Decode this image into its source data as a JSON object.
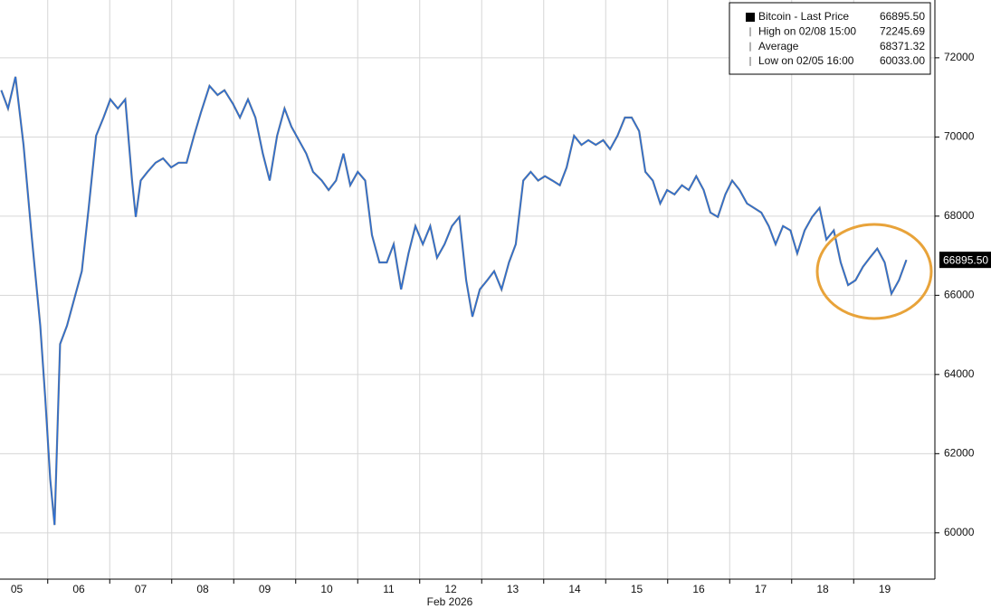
{
  "chart_data": {
    "type": "line",
    "x_label": "Feb 2026",
    "series": [
      {
        "name": "Bitcoin - Last Price",
        "color": "#2b6fd6",
        "x": [
          5.25,
          5.36,
          5.48,
          5.61,
          5.74,
          5.88,
          5.96,
          6.04,
          6.11,
          6.2,
          6.31,
          6.43,
          6.55,
          6.66,
          6.78,
          6.9,
          7.01,
          7.13,
          7.25,
          7.36,
          7.42,
          7.5,
          7.61,
          7.74,
          7.86,
          7.99,
          8.11,
          8.24,
          8.36,
          8.47,
          8.61,
          8.74,
          8.85,
          8.99,
          9.1,
          9.23,
          9.35,
          9.47,
          9.58,
          9.7,
          9.82,
          9.93,
          10.05,
          10.17,
          10.28,
          10.42,
          10.53,
          10.65,
          10.77,
          10.88,
          11.0,
          11.12,
          11.23,
          11.35,
          11.47,
          11.58,
          11.7,
          11.82,
          11.93,
          12.05,
          12.17,
          12.28,
          12.4,
          12.52,
          12.64,
          12.75,
          12.85,
          12.97,
          13.09,
          13.2,
          13.32,
          13.44,
          13.55,
          13.67,
          13.79,
          13.91,
          14.02,
          14.14,
          14.26,
          14.37,
          14.49,
          14.61,
          14.72,
          14.84,
          14.96,
          15.07,
          15.19,
          15.31,
          15.42,
          15.54,
          15.64,
          15.76,
          15.88,
          15.99,
          16.11,
          16.23,
          16.34,
          16.46,
          16.58,
          16.69,
          16.81,
          16.93,
          17.04,
          17.16,
          17.28,
          17.39,
          17.51,
          17.63,
          17.74,
          17.86,
          17.98,
          18.09,
          18.21,
          18.33,
          18.45,
          18.56,
          18.68,
          18.79,
          18.91,
          19.03,
          19.15,
          19.26,
          19.38,
          19.5,
          19.61,
          19.73,
          19.85
        ],
        "values": [
          71180,
          70720,
          71520,
          69800,
          67520,
          65230,
          63400,
          61350,
          60200,
          64770,
          65230,
          65920,
          66610,
          68210,
          70030,
          70490,
          70950,
          70720,
          70950,
          68900,
          67980,
          68900,
          69120,
          69350,
          69460,
          69230,
          69350,
          69350,
          70030,
          70610,
          71290,
          71060,
          71180,
          70830,
          70490,
          70950,
          70490,
          69580,
          68900,
          70030,
          70720,
          70260,
          69920,
          69580,
          69120,
          68900,
          68660,
          68900,
          69580,
          68780,
          69120,
          68900,
          67520,
          66830,
          66830,
          67290,
          66150,
          67060,
          67750,
          67290,
          67750,
          66950,
          67290,
          67750,
          67980,
          66380,
          65460,
          66150,
          66380,
          66610,
          66150,
          66830,
          67290,
          68900,
          69120,
          68900,
          69010,
          68900,
          68780,
          69230,
          70030,
          69800,
          69920,
          69800,
          69920,
          69690,
          70030,
          70490,
          70490,
          70150,
          69120,
          68900,
          68320,
          68660,
          68550,
          68780,
          68660,
          69010,
          68660,
          68090,
          67980,
          68550,
          68900,
          68660,
          68320,
          68210,
          68090,
          67750,
          67290,
          67750,
          67640,
          67060,
          67640,
          67980,
          68210,
          67410,
          67640,
          66830,
          66260,
          66380,
          66720,
          66950,
          67180,
          66830,
          66040,
          66380,
          66895.5
        ]
      }
    ],
    "last_label": "66895.50",
    "legend_stats": [
      {
        "label": "Bitcoin - Last Price",
        "value": "66895.50"
      },
      {
        "label": "High on 02/08 15:00",
        "value": "72245.69"
      },
      {
        "label": "Average",
        "value": "68371.32"
      },
      {
        "label": "Low on 02/05 16:00",
        "value": "60033.00"
      }
    ],
    "xlim": [
      5.23,
      20.31
    ],
    "xticks": [
      {
        "value": 5,
        "label": "05"
      },
      {
        "value": 6,
        "label": "06"
      },
      {
        "value": 7,
        "label": "07"
      },
      {
        "value": 8,
        "label": "08"
      },
      {
        "value": 9,
        "label": "09"
      },
      {
        "value": 10,
        "label": "10"
      },
      {
        "value": 11,
        "label": "11"
      },
      {
        "value": 12,
        "label": "12"
      },
      {
        "value": 13,
        "label": "13"
      },
      {
        "value": 14,
        "label": "14"
      },
      {
        "value": 15,
        "label": "15"
      },
      {
        "value": 16,
        "label": "16"
      },
      {
        "value": 17,
        "label": "17"
      },
      {
        "value": 18,
        "label": "18"
      },
      {
        "value": 19,
        "label": "19"
      }
    ],
    "ylim": [
      58830,
      73460
    ],
    "yticks": [
      60000,
      62000,
      64000,
      66000,
      68000,
      70000,
      72000
    ],
    "grid": true
  }
}
